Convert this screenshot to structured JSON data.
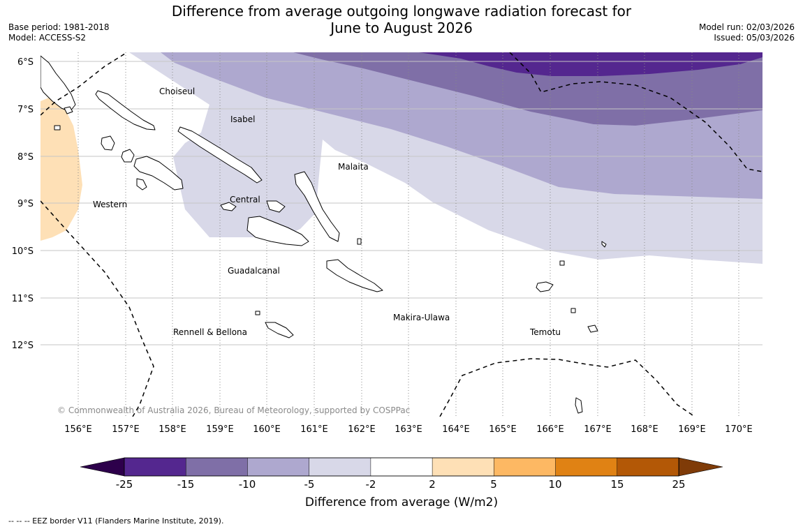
{
  "title": {
    "line1": "Difference from average outgoing longwave radiation forecast for",
    "line2": "June to August 2026"
  },
  "meta_left": {
    "base_period": "Base period: 1981-2018",
    "model": "Model: ACCESS-S2"
  },
  "meta_right": {
    "model_run": "Model run: 02/03/2026",
    "issued": "Issued: 05/03/2026"
  },
  "map": {
    "lat_labels": [
      "6°S",
      "7°S",
      "8°S",
      "9°S",
      "10°S",
      "11°S",
      "12°S"
    ],
    "lon_labels": [
      "156°E",
      "157°E",
      "158°E",
      "159°E",
      "160°E",
      "161°E",
      "162°E",
      "163°E",
      "164°E",
      "165°E",
      "166°E",
      "167°E",
      "168°E",
      "169°E",
      "170°E"
    ],
    "provinces": [
      "Choiseul",
      "Isabel",
      "Malaita",
      "Western",
      "Central",
      "Guadalcanal",
      "Makira-Ulawa",
      "Rennell & Bellona",
      "Temotu"
    ],
    "copyright": "© Commonwealth of Australia 2026, Bureau of Meteorology, supported by COSPPac"
  },
  "colorbar": {
    "ticks": [
      "-25",
      "-15",
      "-10",
      "-5",
      "-2",
      "2",
      "5",
      "10",
      "15",
      "25"
    ],
    "colors": [
      "#54278f",
      "#7f6fa7",
      "#aea8cf",
      "#d8d8e8",
      "#ffffff",
      "#fee0b6",
      "#fdb863",
      "#e08214",
      "#b35806"
    ],
    "under_color": "#2d004b",
    "over_color": "#7f3b08",
    "title": "Difference from average (W/m2)"
  },
  "footer": {
    "eez_note": "--  --  -- EEZ border V11 (Flanders Marine Institute, 2019)."
  }
}
